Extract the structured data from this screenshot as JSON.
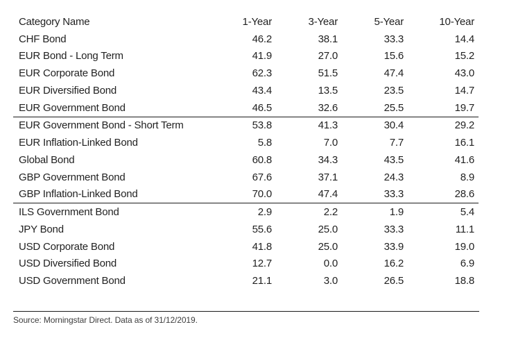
{
  "colors": {
    "background": "#ffffff",
    "text": "#222222",
    "rule": "#1a1a1a",
    "source_text": "#3d3d3d"
  },
  "table": {
    "columns": [
      "Category Name",
      "1-Year",
      "3-Year",
      "5-Year",
      "10-Year"
    ],
    "divider_after_rows": [
      4,
      9
    ],
    "rows": [
      {
        "name": "CHF Bond",
        "values": [
          "46.2",
          "38.1",
          "33.3",
          "14.4"
        ]
      },
      {
        "name": "EUR Bond - Long Term",
        "values": [
          "41.9",
          "27.0",
          "15.6",
          "15.2"
        ]
      },
      {
        "name": "EUR Corporate Bond",
        "values": [
          "62.3",
          "51.5",
          "47.4",
          "43.0"
        ]
      },
      {
        "name": "EUR Diversified Bond",
        "values": [
          "43.4",
          "13.5",
          "23.5",
          "14.7"
        ]
      },
      {
        "name": "EUR Government Bond",
        "values": [
          "46.5",
          "32.6",
          "25.5",
          "19.7"
        ]
      },
      {
        "name": "EUR Government Bond - Short Term",
        "values": [
          "53.8",
          "41.3",
          "30.4",
          "29.2"
        ]
      },
      {
        "name": "EUR Inflation-Linked Bond",
        "values": [
          "5.8",
          "7.0",
          "7.7",
          "16.1"
        ]
      },
      {
        "name": "Global Bond",
        "values": [
          "60.8",
          "34.3",
          "43.5",
          "41.6"
        ]
      },
      {
        "name": "GBP Government Bond",
        "values": [
          "67.6",
          "37.1",
          "24.3",
          "8.9"
        ]
      },
      {
        "name": "GBP Inflation-Linked Bond",
        "values": [
          "70.0",
          "47.4",
          "33.3",
          "28.6"
        ]
      },
      {
        "name": "ILS Government Bond",
        "values": [
          "2.9",
          "2.2",
          "1.9",
          "5.4"
        ]
      },
      {
        "name": "JPY Bond",
        "values": [
          "55.6",
          "25.0",
          "33.3",
          "11.1"
        ]
      },
      {
        "name": "USD Corporate Bond",
        "values": [
          "41.8",
          "25.0",
          "33.9",
          "19.0"
        ]
      },
      {
        "name": "USD Diversified Bond",
        "values": [
          "12.7",
          "0.0",
          "16.2",
          "6.9"
        ]
      },
      {
        "name": "USD Government Bond",
        "values": [
          "21.1",
          "3.0",
          "26.5",
          "18.8"
        ]
      }
    ]
  },
  "footer": {
    "source_text": "Source: Morningstar Direct. Data as of 31/12/2019."
  },
  "chart_data": {
    "type": "table",
    "title": "",
    "columns": [
      "Category Name",
      "1-Year",
      "3-Year",
      "5-Year",
      "10-Year"
    ],
    "rows": [
      {
        "category": "CHF Bond",
        "1_year": 46.2,
        "3_year": 38.1,
        "5_year": 33.3,
        "10_year": 14.4
      },
      {
        "category": "EUR Bond - Long Term",
        "1_year": 41.9,
        "3_year": 27.0,
        "5_year": 15.6,
        "10_year": 15.2
      },
      {
        "category": "EUR Corporate Bond",
        "1_year": 62.3,
        "3_year": 51.5,
        "5_year": 47.4,
        "10_year": 43.0
      },
      {
        "category": "EUR Diversified Bond",
        "1_year": 43.4,
        "3_year": 13.5,
        "5_year": 23.5,
        "10_year": 14.7
      },
      {
        "category": "EUR Government Bond",
        "1_year": 46.5,
        "3_year": 32.6,
        "5_year": 25.5,
        "10_year": 19.7
      },
      {
        "category": "EUR Government Bond - Short Term",
        "1_year": 53.8,
        "3_year": 41.3,
        "5_year": 30.4,
        "10_year": 29.2
      },
      {
        "category": "EUR Inflation-Linked Bond",
        "1_year": 5.8,
        "3_year": 7.0,
        "5_year": 7.7,
        "10_year": 16.1
      },
      {
        "category": "Global Bond",
        "1_year": 60.8,
        "3_year": 34.3,
        "5_year": 43.5,
        "10_year": 41.6
      },
      {
        "category": "GBP Government Bond",
        "1_year": 67.6,
        "3_year": 37.1,
        "5_year": 24.3,
        "10_year": 8.9
      },
      {
        "category": "GBP Inflation-Linked Bond",
        "1_year": 70.0,
        "3_year": 47.4,
        "5_year": 33.3,
        "10_year": 28.6
      },
      {
        "category": "ILS Government Bond",
        "1_year": 2.9,
        "3_year": 2.2,
        "5_year": 1.9,
        "10_year": 5.4
      },
      {
        "category": "JPY Bond",
        "1_year": 55.6,
        "3_year": 25.0,
        "5_year": 33.3,
        "10_year": 11.1
      },
      {
        "category": "USD Corporate Bond",
        "1_year": 41.8,
        "3_year": 25.0,
        "5_year": 33.9,
        "10_year": 19.0
      },
      {
        "category": "USD Diversified Bond",
        "1_year": 12.7,
        "3_year": 0.0,
        "5_year": 16.2,
        "10_year": 6.9
      },
      {
        "category": "USD Government Bond",
        "1_year": 21.1,
        "3_year": 3.0,
        "5_year": 26.5,
        "10_year": 18.8
      }
    ],
    "source": "Source: Morningstar Direct. Data as of 31/12/2019."
  }
}
